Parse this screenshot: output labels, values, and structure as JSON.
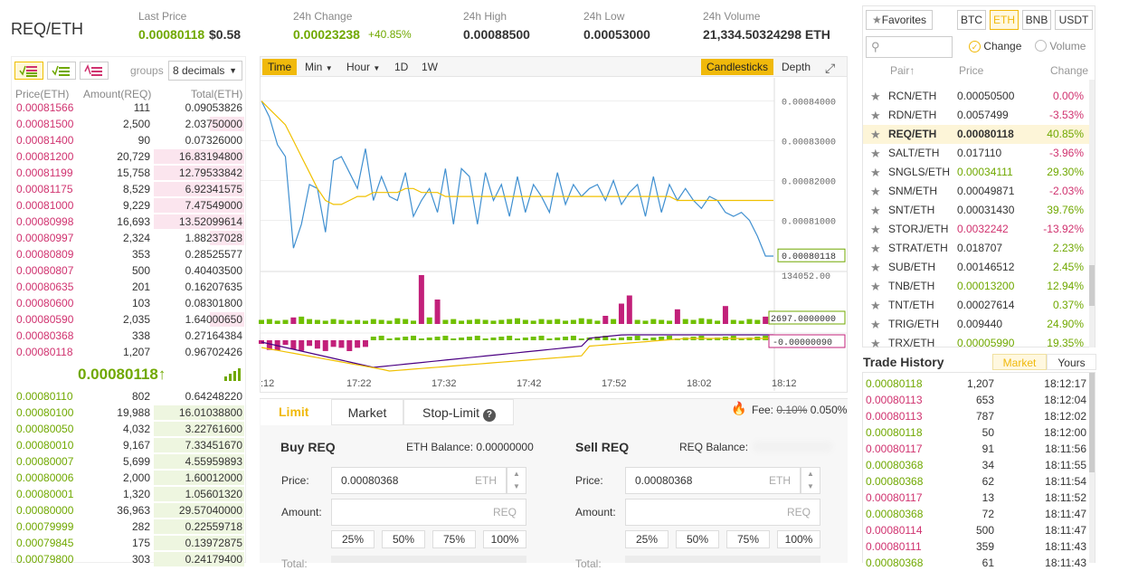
{
  "header": {
    "pair": "REQ/ETH",
    "last_price_label": "Last Price",
    "last_price": "0.00080118",
    "last_price_usd": "$0.58",
    "change_label": "24h Change",
    "change": "0.00023238",
    "change_pct": "+40.85%",
    "high_label": "24h High",
    "high": "0.00088500",
    "low_label": "24h Low",
    "low": "0.00053000",
    "volume_label": "24h Volume",
    "volume": "21,334.50324298 ETH"
  },
  "orderbook": {
    "groups_label": "groups",
    "groups_value": "8 decimals",
    "col_price": "Price(ETH)",
    "col_amount": "Amount(REQ)",
    "col_total": "Total(ETH)",
    "asks": [
      {
        "price": "0.00081566",
        "amount": "111",
        "total": "0.09053826",
        "depth": 0.0
      },
      {
        "price": "0.00081500",
        "amount": "2,500",
        "total": "2.03750000",
        "depth": 0.38
      },
      {
        "price": "0.00081400",
        "amount": "90",
        "total": "0.07326000",
        "depth": 0.0
      },
      {
        "price": "0.00081200",
        "amount": "20,729",
        "total": "16.83194800",
        "depth": 1.0
      },
      {
        "price": "0.00081199",
        "amount": "15,758",
        "total": "12.79533842",
        "depth": 1.0
      },
      {
        "price": "0.00081175",
        "amount": "8,529",
        "total": "6.92341575",
        "depth": 1.0
      },
      {
        "price": "0.00081000",
        "amount": "9,229",
        "total": "7.47549000",
        "depth": 1.0
      },
      {
        "price": "0.00080998",
        "amount": "16,693",
        "total": "13.52099614",
        "depth": 1.0
      },
      {
        "price": "0.00080997",
        "amount": "2,324",
        "total": "1.88237028",
        "depth": 0.38
      },
      {
        "price": "0.00080809",
        "amount": "353",
        "total": "0.28525577",
        "depth": 0.0
      },
      {
        "price": "0.00080807",
        "amount": "500",
        "total": "0.40403500",
        "depth": 0.0
      },
      {
        "price": "0.00080635",
        "amount": "201",
        "total": "0.16207635",
        "depth": 0.0
      },
      {
        "price": "0.00080600",
        "amount": "103",
        "total": "0.08301800",
        "depth": 0.0
      },
      {
        "price": "0.00080590",
        "amount": "2,035",
        "total": "1.64000650",
        "depth": 0.38
      },
      {
        "price": "0.00080368",
        "amount": "338",
        "total": "0.27164384",
        "depth": 0.0
      },
      {
        "price": "0.00080118",
        "amount": "1,207",
        "total": "0.96702426",
        "depth": 0.0
      }
    ],
    "last": "0.00080118↑",
    "bids": [
      {
        "price": "0.00080110",
        "amount": "802",
        "total": "0.64248220",
        "depth": 0.0
      },
      {
        "price": "0.00080100",
        "amount": "19,988",
        "total": "16.01038800",
        "depth": 1.0
      },
      {
        "price": "0.00080050",
        "amount": "4,032",
        "total": "3.22761600",
        "depth": 1.0
      },
      {
        "price": "0.00080010",
        "amount": "9,167",
        "total": "7.33451670",
        "depth": 1.0
      },
      {
        "price": "0.00080007",
        "amount": "5,699",
        "total": "4.55959893",
        "depth": 1.0
      },
      {
        "price": "0.00080006",
        "amount": "2,000",
        "total": "1.60012000",
        "depth": 1.0
      },
      {
        "price": "0.00080001",
        "amount": "1,320",
        "total": "1.05601320",
        "depth": 1.0
      },
      {
        "price": "0.00080000",
        "amount": "36,963",
        "total": "29.57040000",
        "depth": 1.0
      },
      {
        "price": "0.00079999",
        "amount": "282",
        "total": "0.22559718",
        "depth": 1.0
      },
      {
        "price": "0.00079845",
        "amount": "175",
        "total": "0.13972875",
        "depth": 1.0
      },
      {
        "price": "0.00079800",
        "amount": "303",
        "total": "0.24179400",
        "depth": 1.0
      }
    ]
  },
  "chart_toolbar": {
    "time": "Time",
    "min": "Min",
    "hour": "Hour",
    "d1": "1D",
    "w1": "1W",
    "candlesticks": "Candlesticks",
    "depth": "Depth"
  },
  "chart_data": {
    "type": "line",
    "x_ticks": [
      ":12",
      "17:22",
      "17:32",
      "17:42",
      "17:52",
      "18:02",
      "18:12"
    ],
    "y_ticks": [
      "0.00084000",
      "0.00083000",
      "0.00082000",
      "0.00081000"
    ],
    "ylim": [
      0.0007985,
      0.000844
    ],
    "current_price_label": "0.00080118",
    "volume_scale_label": "134052.00",
    "volume_marker_label": "2697.0000000",
    "macd_marker_label": "-0.00000090",
    "series": [
      {
        "name": "price",
        "color": "#3f8fd0",
        "values": [
          0.00084,
          0.000836,
          0.000829,
          0.000826,
          0.000803,
          0.000809,
          0.000819,
          0.000818,
          0.000807,
          0.000825,
          0.000826,
          0.000822,
          0.000818,
          0.000828,
          0.000815,
          0.000821,
          0.000816,
          0.000815,
          0.000822,
          0.000811,
          0.000815,
          0.000818,
          0.000812,
          0.000823,
          0.000809,
          0.000823,
          0.000821,
          0.000809,
          0.000822,
          0.000815,
          0.000819,
          0.000811,
          0.000821,
          0.000812,
          0.000819,
          0.000816,
          0.000812,
          0.000822,
          0.000814,
          0.000819,
          0.000816,
          0.000818,
          0.000819,
          0.000815,
          0.00082,
          0.000814,
          0.000817,
          0.000819,
          0.000811,
          0.000821,
          0.000812,
          0.000819,
          0.000815,
          0.000818,
          0.000815,
          0.000813,
          0.000816,
          0.000815,
          0.000812,
          0.000811,
          0.000812,
          0.00081,
          0.000806,
          0.000801,
          0.000801
        ]
      },
      {
        "name": "ma",
        "color": "#f0c000",
        "values": [
          0.00084,
          0.000838,
          0.000836,
          0.000834,
          0.00083,
          0.000826,
          0.000822,
          0.000818,
          0.000815,
          0.000814,
          0.000814,
          0.000815,
          0.000816,
          0.000816,
          0.000817,
          0.000817,
          0.000817,
          0.000817,
          0.000818,
          0.000818,
          0.000817,
          0.000817,
          0.000817,
          0.000816,
          0.000816,
          0.000816,
          0.000816,
          0.000816,
          0.000816,
          0.000816,
          0.000816,
          0.000816,
          0.000816,
          0.000816,
          0.000816,
          0.000816,
          0.000816,
          0.000816,
          0.000816,
          0.000816,
          0.000816,
          0.000816,
          0.000816,
          0.000816,
          0.000816,
          0.000816,
          0.000816,
          0.000816,
          0.000816,
          0.000816,
          0.000816,
          0.000816,
          0.000815,
          0.000815,
          0.000815,
          0.000815,
          0.000815,
          0.000815,
          0.000815,
          0.000815,
          0.000815,
          0.000815,
          0.000815,
          0.000815,
          0.000815
        ]
      }
    ],
    "volumes": [
      5,
      6,
      4,
      5,
      8,
      9,
      6,
      5,
      4,
      6,
      5,
      4,
      5,
      4,
      6,
      5,
      4,
      7,
      6,
      4,
      60,
      8,
      30,
      5,
      6,
      4,
      5,
      6,
      5,
      4,
      5,
      6,
      7,
      5,
      4,
      6,
      5,
      6,
      4,
      5,
      7,
      6,
      4,
      10,
      6,
      25,
      35,
      5,
      4,
      6,
      5,
      4,
      18,
      6,
      5,
      7,
      6,
      4,
      22,
      5,
      4,
      6,
      5,
      9,
      4
    ],
    "volume_colors": [
      "g",
      "g",
      "g",
      "g",
      "r",
      "g",
      "g",
      "g",
      "g",
      "g",
      "g",
      "g",
      "g",
      "g",
      "g",
      "g",
      "g",
      "g",
      "g",
      "g",
      "r",
      "g",
      "r",
      "g",
      "g",
      "g",
      "g",
      "g",
      "g",
      "g",
      "g",
      "g",
      "g",
      "g",
      "g",
      "g",
      "g",
      "g",
      "g",
      "g",
      "g",
      "g",
      "g",
      "r",
      "g",
      "r",
      "r",
      "g",
      "g",
      "g",
      "g",
      "g",
      "r",
      "g",
      "g",
      "g",
      "g",
      "g",
      "r",
      "g",
      "g",
      "g",
      "g",
      "r",
      "g"
    ]
  },
  "market": {
    "favorites": "Favorites",
    "tabs": [
      "BTC",
      "ETH",
      "BNB",
      "USDT"
    ],
    "active_tab": "ETH",
    "search_placeholder": "",
    "radio_change": "Change",
    "radio_volume": "Volume",
    "col_pair": "Pair↑",
    "col_price": "Price",
    "col_change": "Change",
    "rows": [
      {
        "pair": "RCN/ETH",
        "price": "0.00050500",
        "change": "0.00%",
        "dir": "red"
      },
      {
        "pair": "RDN/ETH",
        "price": "0.0057499",
        "change": "-3.53%",
        "dir": "red"
      },
      {
        "pair": "REQ/ETH",
        "price": "0.00080118",
        "change": "40.85%",
        "dir": "green"
      },
      {
        "pair": "SALT/ETH",
        "price": "0.017110",
        "change": "-3.96%",
        "dir": "red"
      },
      {
        "pair": "SNGLS/ETH",
        "price": "0.00034111",
        "change": "29.30%",
        "dir": "green"
      },
      {
        "pair": "SNM/ETH",
        "price": "0.00049871",
        "change": "-2.03%",
        "dir": "red"
      },
      {
        "pair": "SNT/ETH",
        "price": "0.00031430",
        "change": "39.76%",
        "dir": "green"
      },
      {
        "pair": "STORJ/ETH",
        "price": "0.0032242",
        "change": "-13.92%",
        "dir": "red"
      },
      {
        "pair": "STRAT/ETH",
        "price": "0.018707",
        "change": "2.23%",
        "dir": "green"
      },
      {
        "pair": "SUB/ETH",
        "price": "0.00146512",
        "change": "2.45%",
        "dir": "green"
      },
      {
        "pair": "TNB/ETH",
        "price": "0.00013200",
        "change": "12.94%",
        "dir": "green"
      },
      {
        "pair": "TNT/ETH",
        "price": "0.00027614",
        "change": "0.37%",
        "dir": "green"
      },
      {
        "pair": "TRIG/ETH",
        "price": "0.009440",
        "change": "24.90%",
        "dir": "green"
      },
      {
        "pair": "TRX/ETH",
        "price": "0.00005990",
        "change": "19.35%",
        "dir": "green"
      }
    ]
  },
  "trade_history": {
    "title": "Trade History",
    "tab_market": "Market",
    "tab_yours": "Yours",
    "rows": [
      {
        "price": "0.00080118",
        "amount": "1,207",
        "time": "18:12:17",
        "dir": "green"
      },
      {
        "price": "0.00080113",
        "amount": "653",
        "time": "18:12:04",
        "dir": "red"
      },
      {
        "price": "0.00080113",
        "amount": "787",
        "time": "18:12:02",
        "dir": "red"
      },
      {
        "price": "0.00080118",
        "amount": "50",
        "time": "18:12:00",
        "dir": "green"
      },
      {
        "price": "0.00080117",
        "amount": "91",
        "time": "18:11:56",
        "dir": "red"
      },
      {
        "price": "0.00080368",
        "amount": "34",
        "time": "18:11:55",
        "dir": "green"
      },
      {
        "price": "0.00080368",
        "amount": "62",
        "time": "18:11:54",
        "dir": "green"
      },
      {
        "price": "0.00080117",
        "amount": "13",
        "time": "18:11:52",
        "dir": "red"
      },
      {
        "price": "0.00080368",
        "amount": "72",
        "time": "18:11:47",
        "dir": "green"
      },
      {
        "price": "0.00080114",
        "amount": "500",
        "time": "18:11:47",
        "dir": "red"
      },
      {
        "price": "0.00080111",
        "amount": "359",
        "time": "18:11:43",
        "dir": "red"
      },
      {
        "price": "0.00080368",
        "amount": "61",
        "time": "18:11:43",
        "dir": "green"
      }
    ]
  },
  "order_form": {
    "tabs": [
      "Limit",
      "Market",
      "Stop-Limit"
    ],
    "fee_label": "Fee:",
    "fee_old": "0.10%",
    "fee_new": "0.050%",
    "buy_title": "Buy REQ",
    "buy_balance": "ETH Balance: 0.00000000",
    "sell_title": "Sell REQ",
    "sell_balance": "REQ Balance:",
    "price_label": "Price:",
    "amount_label": "Amount:",
    "total_label": "Total:",
    "buy_price": "0.00080368",
    "sell_price": "0.00080368",
    "unit_eth": "ETH",
    "unit_req": "REQ",
    "percents": [
      "25%",
      "50%",
      "75%",
      "100%"
    ]
  }
}
